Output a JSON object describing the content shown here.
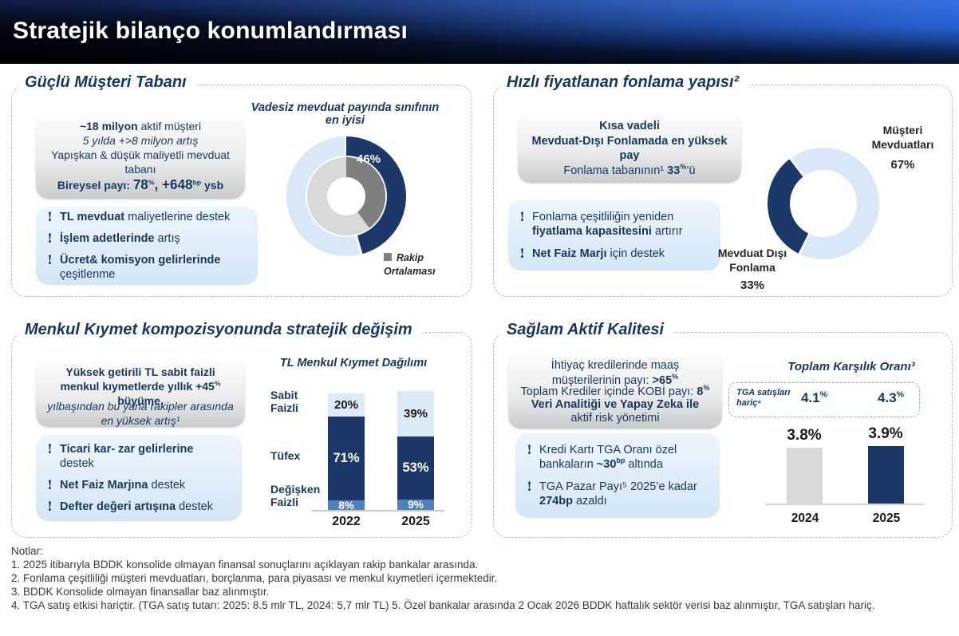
{
  "slide": {
    "title": "Stratejik bilanço konumlandırması"
  },
  "colors": {
    "navy": "#17375E",
    "ring_navy": "#1B3868",
    "pale_blue": "#D9E7F6",
    "bar_pale": "#DCE9F6",
    "mid_blue": "#4F81BD",
    "dark_gray": "#7F7F7F",
    "light_gray": "#D9D9D9",
    "bar_gray": "#D9D9D9"
  },
  "panels": {
    "guclu": {
      "title": "Güçlü Müşteri Tabanı",
      "gray_lines": [
        [
          {
            "t": "~18 milyon",
            "b": 1
          },
          {
            "t": " aktif müşteri"
          }
        ],
        [
          {
            "t": "5 yılda +>8 milyon artış",
            "i": 1
          }
        ],
        [
          {
            "t": "Yapışkan & düşük maliyetli mevduat tabanı"
          }
        ],
        [
          {
            "t": "Bireysel payı: ",
            "b": 1
          },
          {
            "t": "78",
            "b": 1,
            "lg": 1
          },
          {
            "t": "%",
            "b": 1,
            "sup": 1
          },
          {
            "t": ", +648",
            "b": 1,
            "lg": 1
          },
          {
            "t": "bp",
            "b": 1,
            "sup": 1
          },
          {
            "t": " ysb",
            "b": 1
          }
        ]
      ],
      "bullets": [
        [
          {
            "t": "TL mevduat",
            "b": 1
          },
          {
            "t": " maliyetlerine destek"
          }
        ],
        [
          {
            "t": "İşlem adetlerinde",
            "b": 1
          },
          {
            "t": " artış"
          }
        ],
        [
          {
            "t": "Ücret& komisyon gelirlerinde",
            "b": 1
          },
          {
            "t": " çeşitlenme"
          }
        ]
      ]
    },
    "hizli": {
      "title": "Hızlı fiyatlanan fonlama yapısı²",
      "gray_lines": [
        [
          {
            "t": "Kısa vadeli",
            "b": 1
          }
        ],
        [
          {
            "t": "Mevduat-Dışı Fonlamada en yüksek pay",
            "b": 1
          }
        ],
        [
          {
            "t": "Fonlama tabanının¹ "
          },
          {
            "t": "33",
            "b": 1
          },
          {
            "t": "%",
            "b": 1,
            "sup": 1
          },
          {
            "t": "’ü"
          }
        ]
      ],
      "bullets": [
        [
          {
            "t": "Fonlama çeşitliliğin yeniden "
          },
          {
            "t": "fiyatlama kapasitesini",
            "b": 1
          },
          {
            "t": " artırır"
          }
        ],
        [
          {
            "t": "Net Faiz Marjı",
            "b": 1
          },
          {
            "t": " için destek"
          }
        ]
      ]
    },
    "menkul": {
      "title": "Menkul Kıymet kompozisyonunda stratejik değişim",
      "gray_lines": [
        [
          {
            "t": "Yüksek getirili TL sabit faizli menkul kıymetlerde yıllık +45",
            "b": 1
          },
          {
            "t": "%",
            "b": 1,
            "sup": 1
          },
          {
            "t": " büyüme,",
            "b": 1
          }
        ],
        [
          {
            "t": "yılbaşından bu yana rakipler arasında en yüksek artış¹",
            "i": 1
          }
        ]
      ],
      "bullets": [
        [
          {
            "t": "Ticari kar- zar gelirlerine",
            "b": 1
          },
          {
            "t": " destek"
          }
        ],
        [
          {
            "t": "Net Faiz Marjına",
            "b": 1
          },
          {
            "t": " destek"
          }
        ],
        [
          {
            "t": "Defter değeri artışına",
            "b": 1
          },
          {
            "t": " destek"
          }
        ]
      ]
    },
    "saglam": {
      "title": "Sağlam Aktif Kalitesi",
      "gray_lines": [
        [
          {
            "t": "İhtiyaç kredilerinde maaş müşterilerinin payı: "
          },
          {
            "t": ">65",
            "b": 1
          },
          {
            "t": "%",
            "b": 1,
            "sup": 1
          }
        ],
        [
          {
            "t": "Toplam Krediler içinde KOBİ payı: "
          },
          {
            "t": "8",
            "b": 1
          },
          {
            "t": "%",
            "b": 1,
            "sup": 1
          }
        ],
        [
          {
            "t": "Veri Analitiği ve Yapay Zeka ile",
            "b": 1
          }
        ],
        [
          {
            "t": "aktif risk yönetimi"
          }
        ]
      ],
      "bullets": [
        [
          {
            "t": "Kredi Kartı TGA Oranı özel bankaların "
          },
          {
            "t": "~30",
            "b": 1
          },
          {
            "t": "bp",
            "b": 1,
            "sup": 1
          },
          {
            "t": " altında"
          }
        ],
        [
          {
            "t": "TGA Pazar Payı⁵ 2025’e kadar "
          },
          {
            "t": "274bp",
            "b": 1
          },
          {
            "t": " azaldı"
          }
        ]
      ]
    }
  },
  "chart_data": [
    {
      "id": "vadesiz",
      "type": "donut",
      "title": "Vadesiz mevduat payında sınıfının en iyisi",
      "rings": [
        {
          "name": "Banka",
          "segments": [
            {
              "label": "Vadesiz mevduat payı",
              "value": 46
            },
            {
              "label": "Diğer",
              "value": 54
            }
          ]
        },
        {
          "name": "Rakip Ortalaması",
          "segments": [
            {
              "label": "Rakip ortalaması",
              "value": 40
            },
            {
              "label": "Diğer",
              "value": 60
            }
          ]
        }
      ],
      "data_label": "46%",
      "legend": [
        "Rakip Ortalaması"
      ],
      "legend_position": "bottom-right"
    },
    {
      "id": "fonlama",
      "type": "donut",
      "segments": [
        {
          "label": "Müşteri Mevduatları",
          "value": 67
        },
        {
          "label": "Mevduat Dışı Fonlama",
          "value": 33
        }
      ]
    },
    {
      "id": "menkul",
      "type": "stacked-bar",
      "title": "TL Menkul Kıymet Dağılımı",
      "categories": [
        "2022",
        "2025"
      ],
      "series": [
        {
          "name": "Sabit Faizli",
          "values": [
            20,
            39
          ]
        },
        {
          "name": "Tüfex",
          "values": [
            71,
            53
          ]
        },
        {
          "name": "Değişken Faizli",
          "values": [
            8,
            9
          ]
        }
      ],
      "unit": "%"
    },
    {
      "id": "karsilik",
      "type": "bar",
      "title": "Toplam Karşılık Oranı³",
      "categories": [
        "2024",
        "2025"
      ],
      "values": [
        3.8,
        3.9
      ],
      "unit": "%",
      "annotation": {
        "label": "TGA satışları hariç⁴",
        "values": [
          4.1,
          4.3
        ]
      }
    }
  ],
  "notes": {
    "heading": "Notlar:",
    "lines": [
      "1. 2025 itibarıyla BDDK konsolide olmayan finansal sonuçlarını açıklayan rakip bankalar arasında.",
      "2. Fonlama çeşitliliği müşteri mevduatları, borçlanma, para piyasası ve menkul kıymetleri içermektedir.",
      "3. BDDK Konsolide olmayan finansallar baz alınmıştır.",
      "4. TGA satış etkisi hariçtir. (TGA satış tutarı: 2025: 8.5 mlr TL, 2024: 5,7 mlr TL)  5. Özel bankalar arasında 2 Ocak 2026 BDDK haftalık sektör verisi baz alınmıştır,  TGA satışları hariç."
    ]
  }
}
